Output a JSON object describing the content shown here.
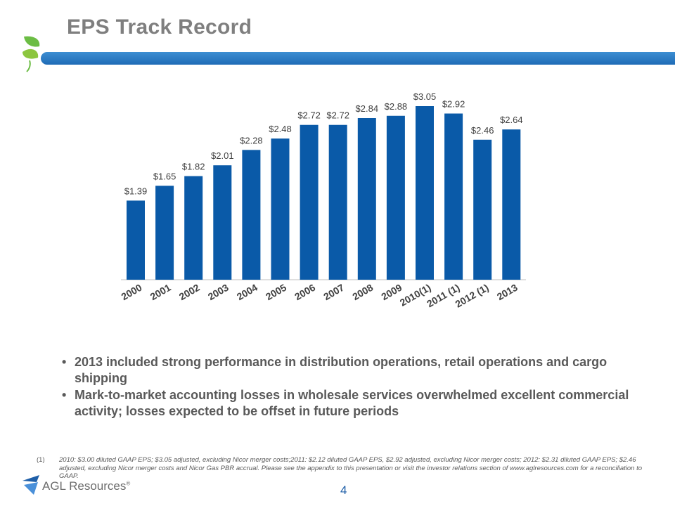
{
  "slide": {
    "title": "EPS Track Record",
    "page_number": "4",
    "bullets": [
      "2013 included strong performance in distribution operations, retail operations and cargo shipping",
      "Mark-to-market accounting losses in wholesale services overwhelmed excellent commercial activity; losses expected to be offset in future periods"
    ],
    "footnote_marker": "(1)",
    "footnote": "2010: $3.00 diluted GAAP EPS; $3.05 adjusted, excluding Nicor merger costs;2011: $2.12 diluted GAAP EPS, $2.92 adjusted, excluding Nicor merger costs; 2012: $2.31 diluted GAAP EPS; $2.46 adjusted, excluding Nicor merger costs and Nicor Gas PBR accrual. Please see the appendix to this presentation or visit the investor relations section of www.aglresources.com for a reconciliation to GAAP.",
    "brand_name": "AGL Resources",
    "brand_mark": "®",
    "colors": {
      "bar": "#0a5aa8",
      "title_bar": "#2a78c4",
      "leaf": "#6cbd45",
      "text": "#595959"
    },
    "icons": [
      "leaf-logo-icon",
      "agl-resources-logo-icon"
    ]
  },
  "chart_data": {
    "type": "bar",
    "title": "",
    "xlabel": "",
    "ylabel": "",
    "categories": [
      "2000",
      "2001",
      "2002",
      "2003",
      "2004",
      "2005",
      "2006",
      "2007",
      "2008",
      "2009",
      "2010(1)",
      "2011 (1)",
      "2012 (1)",
      "2013"
    ],
    "values": [
      1.39,
      1.65,
      1.82,
      2.01,
      2.28,
      2.48,
      2.72,
      2.72,
      2.84,
      2.88,
      3.05,
      2.92,
      2.46,
      2.64
    ],
    "data_labels": [
      "$1.39",
      "$1.65",
      "$1.82",
      "$2.01",
      "$2.28",
      "$2.48",
      "$2.72",
      "$2.72",
      "$2.84",
      "$2.88",
      "$3.05",
      "$2.92",
      "$2.46",
      "$2.64"
    ],
    "ylim": [
      0,
      3.05
    ],
    "grid": false,
    "legend": "none"
  }
}
